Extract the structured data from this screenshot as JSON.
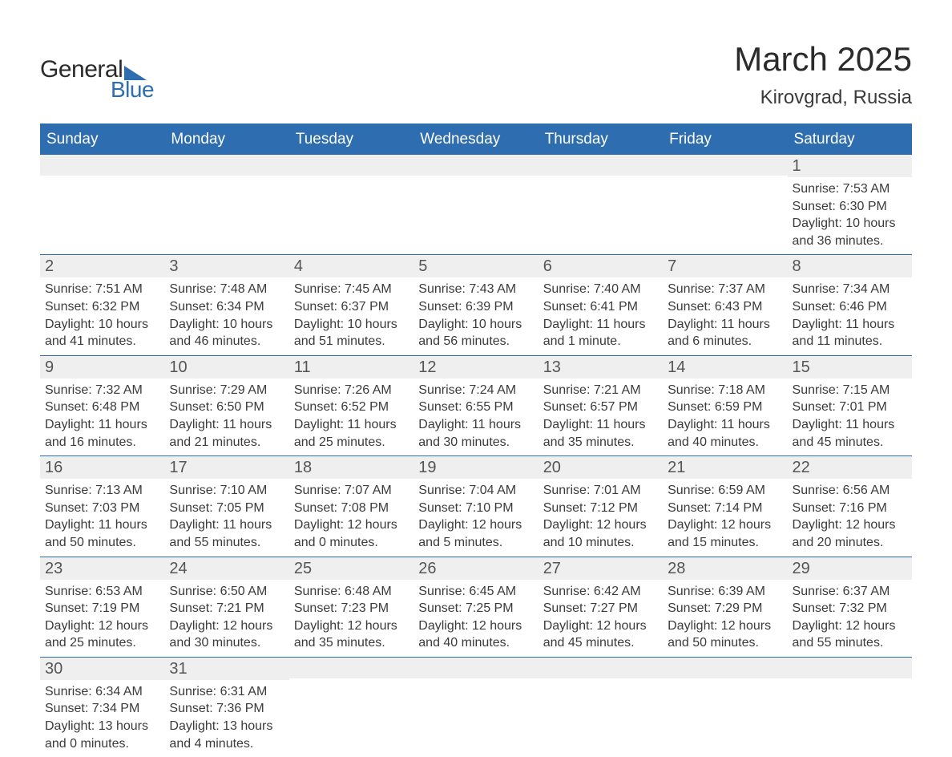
{
  "logo": {
    "text1": "General",
    "text2": "Blue",
    "brand_color": "#2e6eb0"
  },
  "title": {
    "month": "March 2025",
    "location": "Kirovgrad, Russia"
  },
  "colors": {
    "header_bg": "#2e6eb0",
    "header_text": "#ffffff",
    "daynum_bg": "#efefef",
    "text": "#3b3b3b",
    "row_divider": "#2e6eb0"
  },
  "typography": {
    "month_fontsize": 42,
    "location_fontsize": 24,
    "weekday_fontsize": 19,
    "daynum_fontsize": 20,
    "body_fontsize": 16
  },
  "weekdays": [
    "Sunday",
    "Monday",
    "Tuesday",
    "Wednesday",
    "Thursday",
    "Friday",
    "Saturday"
  ],
  "weeks": [
    [
      null,
      null,
      null,
      null,
      null,
      null,
      {
        "n": "1",
        "sunrise": "7:53 AM",
        "sunset": "6:30 PM",
        "dl1": "10 hours",
        "dl2": "and 36 minutes."
      }
    ],
    [
      {
        "n": "2",
        "sunrise": "7:51 AM",
        "sunset": "6:32 PM",
        "dl1": "10 hours",
        "dl2": "and 41 minutes."
      },
      {
        "n": "3",
        "sunrise": "7:48 AM",
        "sunset": "6:34 PM",
        "dl1": "10 hours",
        "dl2": "and 46 minutes."
      },
      {
        "n": "4",
        "sunrise": "7:45 AM",
        "sunset": "6:37 PM",
        "dl1": "10 hours",
        "dl2": "and 51 minutes."
      },
      {
        "n": "5",
        "sunrise": "7:43 AM",
        "sunset": "6:39 PM",
        "dl1": "10 hours",
        "dl2": "and 56 minutes."
      },
      {
        "n": "6",
        "sunrise": "7:40 AM",
        "sunset": "6:41 PM",
        "dl1": "11 hours",
        "dl2": "and 1 minute."
      },
      {
        "n": "7",
        "sunrise": "7:37 AM",
        "sunset": "6:43 PM",
        "dl1": "11 hours",
        "dl2": "and 6 minutes."
      },
      {
        "n": "8",
        "sunrise": "7:34 AM",
        "sunset": "6:46 PM",
        "dl1": "11 hours",
        "dl2": "and 11 minutes."
      }
    ],
    [
      {
        "n": "9",
        "sunrise": "7:32 AM",
        "sunset": "6:48 PM",
        "dl1": "11 hours",
        "dl2": "and 16 minutes."
      },
      {
        "n": "10",
        "sunrise": "7:29 AM",
        "sunset": "6:50 PM",
        "dl1": "11 hours",
        "dl2": "and 21 minutes."
      },
      {
        "n": "11",
        "sunrise": "7:26 AM",
        "sunset": "6:52 PM",
        "dl1": "11 hours",
        "dl2": "and 25 minutes."
      },
      {
        "n": "12",
        "sunrise": "7:24 AM",
        "sunset": "6:55 PM",
        "dl1": "11 hours",
        "dl2": "and 30 minutes."
      },
      {
        "n": "13",
        "sunrise": "7:21 AM",
        "sunset": "6:57 PM",
        "dl1": "11 hours",
        "dl2": "and 35 minutes."
      },
      {
        "n": "14",
        "sunrise": "7:18 AM",
        "sunset": "6:59 PM",
        "dl1": "11 hours",
        "dl2": "and 40 minutes."
      },
      {
        "n": "15",
        "sunrise": "7:15 AM",
        "sunset": "7:01 PM",
        "dl1": "11 hours",
        "dl2": "and 45 minutes."
      }
    ],
    [
      {
        "n": "16",
        "sunrise": "7:13 AM",
        "sunset": "7:03 PM",
        "dl1": "11 hours",
        "dl2": "and 50 minutes."
      },
      {
        "n": "17",
        "sunrise": "7:10 AM",
        "sunset": "7:05 PM",
        "dl1": "11 hours",
        "dl2": "and 55 minutes."
      },
      {
        "n": "18",
        "sunrise": "7:07 AM",
        "sunset": "7:08 PM",
        "dl1": "12 hours",
        "dl2": "and 0 minutes."
      },
      {
        "n": "19",
        "sunrise": "7:04 AM",
        "sunset": "7:10 PM",
        "dl1": "12 hours",
        "dl2": "and 5 minutes."
      },
      {
        "n": "20",
        "sunrise": "7:01 AM",
        "sunset": "7:12 PM",
        "dl1": "12 hours",
        "dl2": "and 10 minutes."
      },
      {
        "n": "21",
        "sunrise": "6:59 AM",
        "sunset": "7:14 PM",
        "dl1": "12 hours",
        "dl2": "and 15 minutes."
      },
      {
        "n": "22",
        "sunrise": "6:56 AM",
        "sunset": "7:16 PM",
        "dl1": "12 hours",
        "dl2": "and 20 minutes."
      }
    ],
    [
      {
        "n": "23",
        "sunrise": "6:53 AM",
        "sunset": "7:19 PM",
        "dl1": "12 hours",
        "dl2": "and 25 minutes."
      },
      {
        "n": "24",
        "sunrise": "6:50 AM",
        "sunset": "7:21 PM",
        "dl1": "12 hours",
        "dl2": "and 30 minutes."
      },
      {
        "n": "25",
        "sunrise": "6:48 AM",
        "sunset": "7:23 PM",
        "dl1": "12 hours",
        "dl2": "and 35 minutes."
      },
      {
        "n": "26",
        "sunrise": "6:45 AM",
        "sunset": "7:25 PM",
        "dl1": "12 hours",
        "dl2": "and 40 minutes."
      },
      {
        "n": "27",
        "sunrise": "6:42 AM",
        "sunset": "7:27 PM",
        "dl1": "12 hours",
        "dl2": "and 45 minutes."
      },
      {
        "n": "28",
        "sunrise": "6:39 AM",
        "sunset": "7:29 PM",
        "dl1": "12 hours",
        "dl2": "and 50 minutes."
      },
      {
        "n": "29",
        "sunrise": "6:37 AM",
        "sunset": "7:32 PM",
        "dl1": "12 hours",
        "dl2": "and 55 minutes."
      }
    ],
    [
      {
        "n": "30",
        "sunrise": "6:34 AM",
        "sunset": "7:34 PM",
        "dl1": "13 hours",
        "dl2": "and 0 minutes."
      },
      {
        "n": "31",
        "sunrise": "6:31 AM",
        "sunset": "7:36 PM",
        "dl1": "13 hours",
        "dl2": "and 4 minutes."
      },
      null,
      null,
      null,
      null,
      null
    ]
  ],
  "labels": {
    "sunrise_prefix": "Sunrise: ",
    "sunset_prefix": "Sunset: ",
    "daylight_prefix": "Daylight: "
  }
}
